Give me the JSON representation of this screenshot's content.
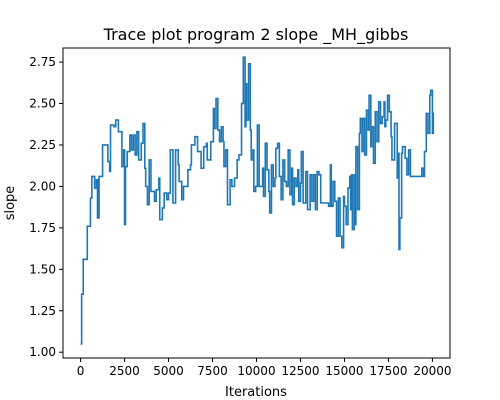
{
  "chart_data": {
    "type": "line",
    "title": "Trace plot program 2 slope _MH_gibbs",
    "xlabel": "Iterations",
    "ylabel": "slope",
    "xlim": [
      -1000,
      21000
    ],
    "ylim": [
      0.965,
      2.835
    ],
    "x_ticks": [
      0,
      2500,
      5000,
      7500,
      10000,
      12500,
      15000,
      17500,
      20000
    ],
    "x_tick_labels": [
      "0",
      "2500",
      "5000",
      "7500",
      "10000",
      "12500",
      "15000",
      "17500",
      "20000"
    ],
    "y_ticks": [
      1.0,
      1.25,
      1.5,
      1.75,
      2.0,
      2.25,
      2.5,
      2.75
    ],
    "y_tick_labels": [
      "1.00",
      "1.25",
      "1.50",
      "1.75",
      "2.00",
      "2.25",
      "2.50",
      "2.75"
    ],
    "grid": false,
    "series": [
      {
        "color": "#1f77b4",
        "step": true,
        "points": [
          [
            0,
            1.05
          ],
          [
            60,
            1.35
          ],
          [
            150,
            1.56
          ],
          [
            380,
            1.76
          ],
          [
            560,
            1.93
          ],
          [
            640,
            2.06
          ],
          [
            800,
            1.99
          ],
          [
            900,
            2.04
          ],
          [
            960,
            1.81
          ],
          [
            1050,
            2.06
          ],
          [
            1250,
            2.25
          ],
          [
            1550,
            2.15
          ],
          [
            1650,
            2.09
          ],
          [
            1700,
            2.37
          ],
          [
            1900,
            2.36
          ],
          [
            2000,
            2.4
          ],
          [
            2150,
            2.33
          ],
          [
            2350,
            2.12
          ],
          [
            2450,
            2.22
          ],
          [
            2500,
            1.77
          ],
          [
            2550,
            2.12
          ],
          [
            2650,
            2.21
          ],
          [
            2800,
            2.31
          ],
          [
            2900,
            2.22
          ],
          [
            3000,
            2.31
          ],
          [
            3100,
            2.19
          ],
          [
            3200,
            2.33
          ],
          [
            3300,
            2.16
          ],
          [
            3450,
            2.26
          ],
          [
            3550,
            2.38
          ],
          [
            3650,
            2.11
          ],
          [
            3700,
            2.0
          ],
          [
            3800,
            1.89
          ],
          [
            3900,
            2.16
          ],
          [
            4000,
            1.97
          ],
          [
            4200,
            1.91
          ],
          [
            4300,
            1.98
          ],
          [
            4450,
            2.05
          ],
          [
            4500,
            1.8
          ],
          [
            4650,
            1.87
          ],
          [
            4750,
            1.96
          ],
          [
            4900,
            1.92
          ],
          [
            5000,
            1.96
          ],
          [
            5100,
            2.22
          ],
          [
            5250,
            1.9
          ],
          [
            5400,
            2.22
          ],
          [
            5550,
            2.13
          ],
          [
            5600,
            2.03
          ],
          [
            5750,
            1.92
          ],
          [
            5850,
            2.0
          ],
          [
            6100,
            2.1
          ],
          [
            6250,
            2.13
          ],
          [
            6300,
            2.25
          ],
          [
            6500,
            2.3
          ],
          [
            6650,
            2.21
          ],
          [
            6850,
            2.11
          ],
          [
            7000,
            2.24
          ],
          [
            7150,
            2.26
          ],
          [
            7200,
            2.16
          ],
          [
            7400,
            2.27
          ],
          [
            7550,
            2.47
          ],
          [
            7600,
            2.35
          ],
          [
            7700,
            2.53
          ],
          [
            7800,
            2.34
          ],
          [
            7900,
            2.27
          ],
          [
            8000,
            2.36
          ],
          [
            8100,
            2.27
          ],
          [
            8150,
            2.12
          ],
          [
            8250,
            2.22
          ],
          [
            8350,
            1.89
          ],
          [
            8500,
            2.04
          ],
          [
            8600,
            2.0
          ],
          [
            8750,
            2.05
          ],
          [
            8900,
            2.16
          ],
          [
            9000,
            2.19
          ],
          [
            9150,
            2.5
          ],
          [
            9250,
            2.78
          ],
          [
            9350,
            2.36
          ],
          [
            9400,
            2.62
          ],
          [
            9450,
            2.4
          ],
          [
            9550,
            2.74
          ],
          [
            9650,
            2.34
          ],
          [
            9700,
            2.16
          ],
          [
            9800,
            2.22
          ],
          [
            9850,
            1.97
          ],
          [
            9950,
            2.0
          ],
          [
            10050,
            2.37
          ],
          [
            10150,
            2.0
          ],
          [
            10350,
            2.11
          ],
          [
            10400,
            1.94
          ],
          [
            10500,
            2.26
          ],
          [
            10600,
            2.1
          ],
          [
            10700,
            1.97
          ],
          [
            10750,
            1.84
          ],
          [
            10850,
            2.13
          ],
          [
            10950,
            2.0
          ],
          [
            11050,
            2.05
          ],
          [
            11100,
            2.23
          ],
          [
            11200,
            2.26
          ],
          [
            11300,
            2.06
          ],
          [
            11400,
            1.92
          ],
          [
            11500,
            2.16
          ],
          [
            11600,
            2.03
          ],
          [
            11700,
            2.0
          ],
          [
            11800,
            2.22
          ],
          [
            11900,
            1.95
          ],
          [
            12000,
            2.11
          ],
          [
            12050,
            1.89
          ],
          [
            12150,
            2.05
          ],
          [
            12250,
            2.0
          ],
          [
            12350,
            2.1
          ],
          [
            12400,
            1.91
          ],
          [
            12500,
            2.02
          ],
          [
            12550,
            2.21
          ],
          [
            12650,
            1.9
          ],
          [
            12800,
            2.09
          ],
          [
            12900,
            1.86
          ],
          [
            13050,
            2.07
          ],
          [
            13150,
            1.91
          ],
          [
            13250,
            2.07
          ],
          [
            13350,
            1.86
          ],
          [
            13450,
            2.09
          ],
          [
            13550,
            2.07
          ],
          [
            13650,
            1.9
          ],
          [
            14100,
            1.88
          ],
          [
            14200,
            2.13
          ],
          [
            14250,
            1.88
          ],
          [
            14350,
            2.03
          ],
          [
            14450,
            1.91
          ],
          [
            14550,
            1.7
          ],
          [
            14650,
            1.93
          ],
          [
            14750,
            1.7
          ],
          [
            14850,
            1.63
          ],
          [
            14950,
            1.94
          ],
          [
            15000,
            1.88
          ],
          [
            15100,
            1.77
          ],
          [
            15200,
            1.99
          ],
          [
            15300,
            2.06
          ],
          [
            15350,
            1.86
          ],
          [
            15400,
            2.07
          ],
          [
            15450,
            1.74
          ],
          [
            15550,
            2.07
          ],
          [
            15600,
            1.77
          ],
          [
            15650,
            2.24
          ],
          [
            15750,
            1.86
          ],
          [
            15850,
            2.32
          ],
          [
            15900,
            2.41
          ],
          [
            16000,
            2.21
          ],
          [
            16050,
            2.41
          ],
          [
            16150,
            2.19
          ],
          [
            16250,
            2.46
          ],
          [
            16350,
            2.34
          ],
          [
            16400,
            2.55
          ],
          [
            16500,
            2.24
          ],
          [
            16550,
            2.36
          ],
          [
            16650,
            2.14
          ],
          [
            16750,
            2.45
          ],
          [
            16850,
            2.27
          ],
          [
            16950,
            2.51
          ],
          [
            17050,
            2.38
          ],
          [
            17150,
            2.42
          ],
          [
            17250,
            2.51
          ],
          [
            17300,
            2.36
          ],
          [
            17350,
            2.4
          ],
          [
            17450,
            2.55
          ],
          [
            17550,
            2.45
          ],
          [
            17650,
            2.3
          ],
          [
            17700,
            2.16
          ],
          [
            17850,
            2.38
          ],
          [
            18000,
            2.05
          ],
          [
            18050,
            2.2
          ],
          [
            18100,
            1.62
          ],
          [
            18150,
            1.81
          ],
          [
            18250,
            2.2
          ],
          [
            18300,
            2.24
          ],
          [
            18450,
            2.17
          ],
          [
            18550,
            2.07
          ],
          [
            18650,
            2.22
          ],
          [
            18750,
            2.06
          ],
          [
            19400,
            2.11
          ],
          [
            19500,
            2.06
          ],
          [
            19550,
            2.21
          ],
          [
            19650,
            2.44
          ],
          [
            19750,
            2.32
          ],
          [
            19850,
            2.55
          ],
          [
            19900,
            2.58
          ],
          [
            20000,
            2.32
          ],
          [
            20050,
            2.44
          ],
          [
            20100,
            2.44
          ]
        ]
      }
    ]
  }
}
